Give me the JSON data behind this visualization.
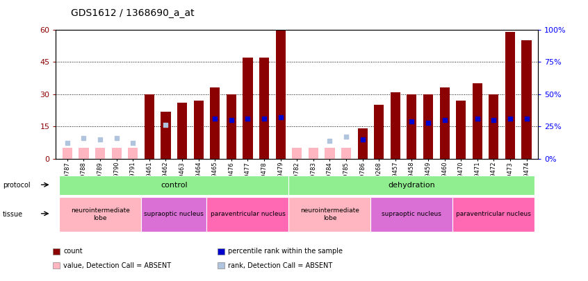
{
  "title": "GDS1612 / 1368690_a_at",
  "samples": [
    "GSM69787",
    "GSM69788",
    "GSM69789",
    "GSM69790",
    "GSM69791",
    "GSM69461",
    "GSM69462",
    "GSM69463",
    "GSM69464",
    "GSM69465",
    "GSM69476",
    "GSM69477",
    "GSM69478",
    "GSM69479",
    "GSM69782",
    "GSM69783",
    "GSM69784",
    "GSM69785",
    "GSM69786",
    "GSM69268",
    "GSM69457",
    "GSM69458",
    "GSM69459",
    "GSM69460",
    "GSM69470",
    "GSM69471",
    "GSM69472",
    "GSM69473",
    "GSM69474"
  ],
  "count_values": [
    5,
    5,
    5,
    5,
    5,
    30,
    22,
    26,
    27,
    33,
    30,
    47,
    47,
    60,
    5,
    5,
    5,
    5,
    14,
    25,
    31,
    30,
    30,
    33,
    27,
    35,
    30,
    59,
    55
  ],
  "rank_values": [
    12,
    16,
    15,
    16,
    12,
    null,
    26,
    null,
    null,
    31,
    30,
    31,
    31,
    32,
    null,
    null,
    14,
    17,
    15,
    null,
    null,
    29,
    28,
    30,
    null,
    31,
    30,
    31,
    31
  ],
  "absent_count": [
    true,
    true,
    true,
    true,
    true,
    false,
    false,
    false,
    false,
    false,
    false,
    false,
    false,
    false,
    true,
    true,
    true,
    true,
    false,
    false,
    false,
    false,
    false,
    false,
    false,
    false,
    false,
    false,
    false
  ],
  "absent_rank": [
    true,
    true,
    true,
    true,
    true,
    false,
    true,
    false,
    false,
    false,
    false,
    false,
    false,
    false,
    false,
    false,
    true,
    true,
    false,
    false,
    false,
    false,
    false,
    false,
    false,
    false,
    false,
    false,
    false
  ],
  "ylim_left": [
    0,
    60
  ],
  "ylim_right": [
    0,
    100
  ],
  "yticks_left": [
    0,
    15,
    30,
    45,
    60
  ],
  "yticks_right": [
    0,
    25,
    50,
    75,
    100
  ],
  "color_count_present": "#8B0000",
  "color_count_absent": "#FFB6C1",
  "color_rank_present": "#0000CD",
  "color_rank_absent": "#B0C4DE",
  "bg_color": "#ffffff",
  "protocol_groups": [
    {
      "label": "control",
      "start": 0,
      "end": 13,
      "color": "#90EE90"
    },
    {
      "label": "dehydration",
      "start": 14,
      "end": 28,
      "color": "#90EE90"
    }
  ],
  "tissue_groups": [
    {
      "label": "neurointermediate\nlobe",
      "start": 0,
      "end": 4,
      "color": "#FFB6C1"
    },
    {
      "label": "supraoptic nucleus",
      "start": 5,
      "end": 8,
      "color": "#DA70D6"
    },
    {
      "label": "paraventricular nucleus",
      "start": 9,
      "end": 13,
      "color": "#FF69B4"
    },
    {
      "label": "neurointermediate\nlobe",
      "start": 14,
      "end": 18,
      "color": "#FFB6C1"
    },
    {
      "label": "supraoptic nucleus",
      "start": 19,
      "end": 23,
      "color": "#DA70D6"
    },
    {
      "label": "paraventricular nucleus",
      "start": 24,
      "end": 28,
      "color": "#FF69B4"
    }
  ],
  "legend_items": [
    {
      "label": "count",
      "color": "#8B0000"
    },
    {
      "label": "percentile rank within the sample",
      "color": "#0000CD"
    },
    {
      "label": "value, Detection Call = ABSENT",
      "color": "#FFB6C1"
    },
    {
      "label": "rank, Detection Call = ABSENT",
      "color": "#B0C4DE"
    }
  ]
}
